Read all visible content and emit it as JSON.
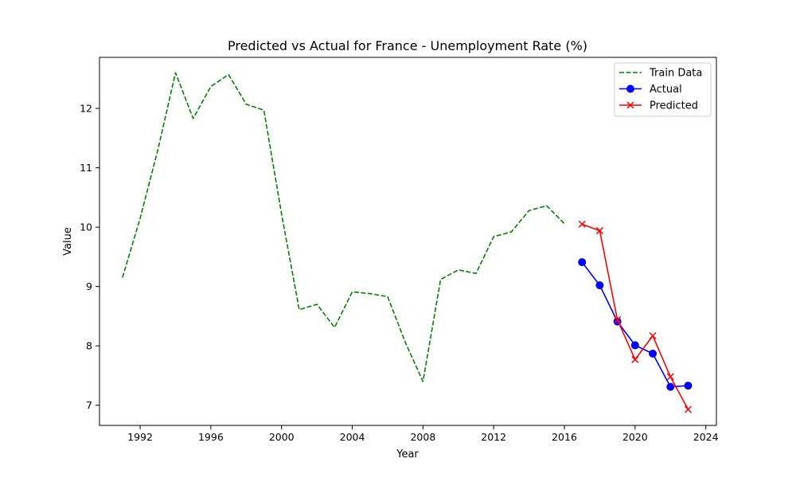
{
  "chart_data": {
    "type": "line",
    "title": "Predicted vs Actual for France - Unemployment Rate (%)",
    "xlabel": "Year",
    "ylabel": "Value",
    "xlim": [
      1989.7,
      2024.6
    ],
    "ylim": [
      6.66,
      12.86
    ],
    "x_ticks": [
      1992,
      1996,
      2000,
      2004,
      2008,
      2012,
      2016,
      2020,
      2024
    ],
    "y_ticks": [
      7,
      8,
      9,
      10,
      11,
      12
    ],
    "grid": false,
    "legend_position": "top-right",
    "series": [
      {
        "name": "Train Data",
        "color": "#008000",
        "line_style": "dashed",
        "marker": "none",
        "x": [
          1991,
          1992,
          1993,
          1994,
          1995,
          1996,
          1997,
          1998,
          1999,
          2000,
          2001,
          2002,
          2003,
          2004,
          2005,
          2006,
          2007,
          2008,
          2009,
          2010,
          2011,
          2012,
          2013,
          2014,
          2015,
          2016
        ],
        "y": [
          9.15,
          10.15,
          11.3,
          12.6,
          11.83,
          12.37,
          12.57,
          12.07,
          11.97,
          10.22,
          8.61,
          8.7,
          8.31,
          8.91,
          8.88,
          8.83,
          8.06,
          7.4,
          9.12,
          9.28,
          9.22,
          9.84,
          9.92,
          10.28,
          10.36,
          10.06
        ]
      },
      {
        "name": "Actual",
        "color": "#0000ff",
        "line_style": "solid",
        "marker": "circle",
        "x": [
          2017,
          2018,
          2019,
          2020,
          2021,
          2022,
          2023
        ],
        "y": [
          9.41,
          9.02,
          8.41,
          8.01,
          7.87,
          7.31,
          7.33
        ]
      },
      {
        "name": "Predicted",
        "color": "#ff0000",
        "line_style": "solid",
        "marker": "x",
        "x": [
          2017,
          2018,
          2019,
          2020,
          2021,
          2022,
          2023
        ],
        "y": [
          10.05,
          9.94,
          8.44,
          7.77,
          8.17,
          7.48,
          6.93
        ]
      }
    ]
  }
}
